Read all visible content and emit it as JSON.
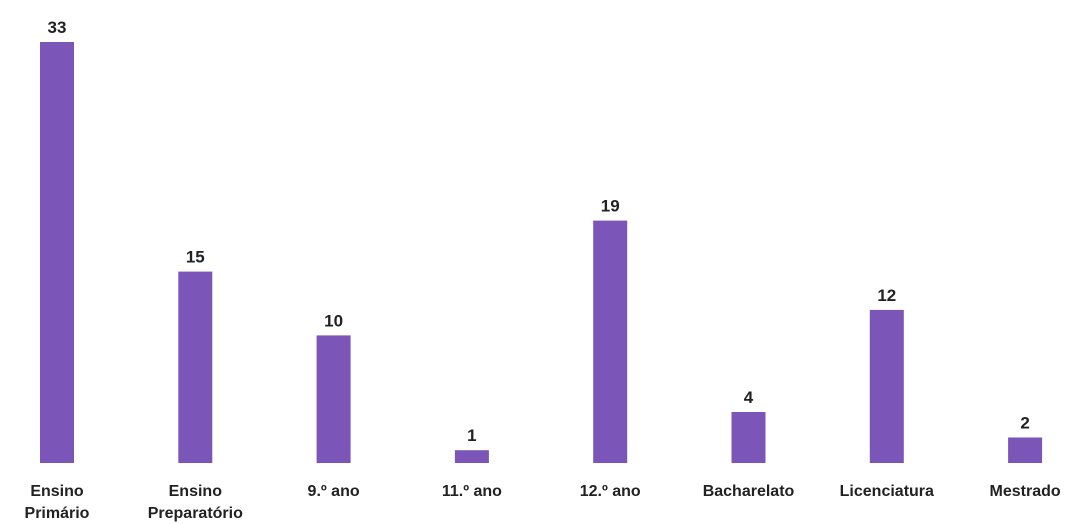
{
  "chart_data": {
    "type": "bar",
    "categories": [
      [
        "Ensino",
        "Primário"
      ],
      [
        "Ensino",
        "Preparatório"
      ],
      [
        "9.º ano"
      ],
      [
        "11.º ano"
      ],
      [
        "12.º ano"
      ],
      [
        "Bacharelato"
      ],
      [
        "Licenciatura"
      ],
      [
        "Mestrado"
      ]
    ],
    "values": [
      33,
      15,
      10,
      1,
      19,
      4,
      12,
      2
    ],
    "title": "",
    "xlabel": "",
    "ylabel": "",
    "ylim": [
      0,
      33
    ],
    "grid": false,
    "legend": "none",
    "bar_color": "#7b55b8",
    "text_color": "#222222"
  }
}
